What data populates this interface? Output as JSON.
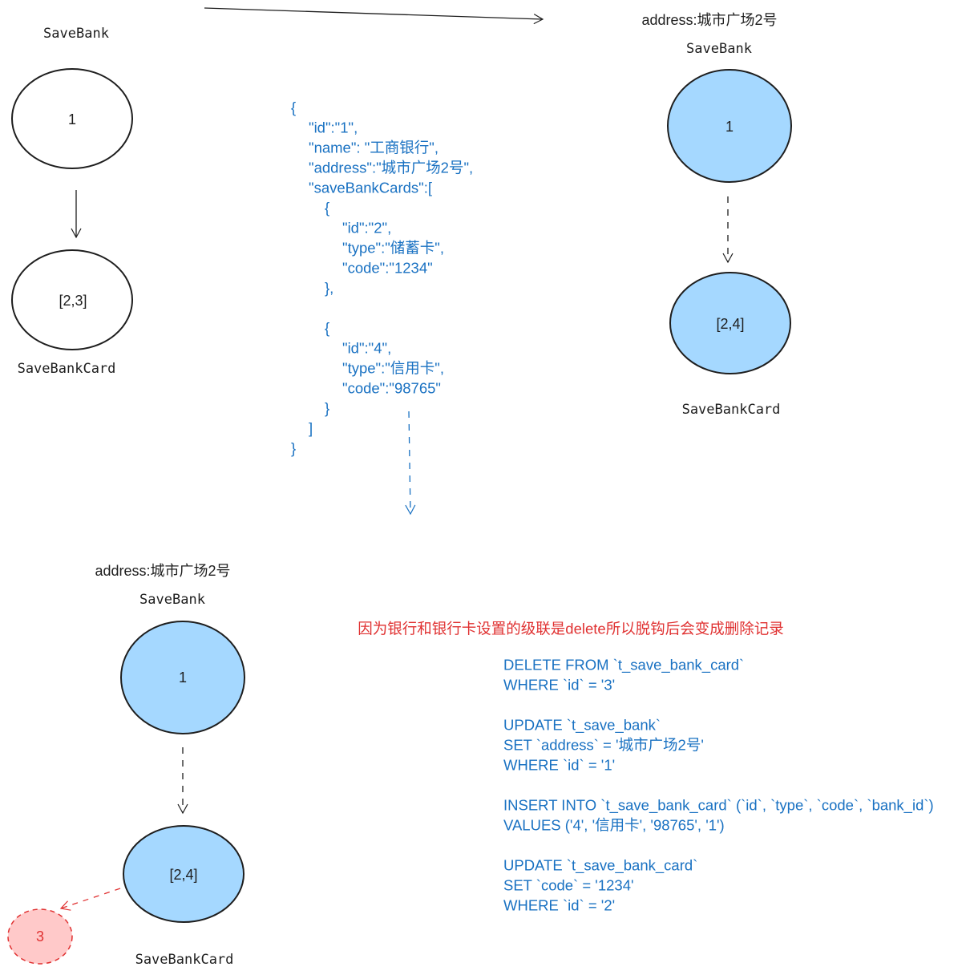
{
  "colors": {
    "stroke": "#1e1e1e",
    "blue_text": "#1971c2",
    "blue_fill": "#a5d8ff",
    "red": "#e03131",
    "red_fill": "#ffc9c9"
  },
  "before": {
    "bank_label": "SaveBank",
    "bank_node": "1",
    "card_node": "[2,3]",
    "card_label": "SaveBankCard"
  },
  "after_top": {
    "address": "address:城市广场2号",
    "bank_label": "SaveBank",
    "bank_node": "1",
    "card_node": "[2,4]",
    "card_label": "SaveBankCard"
  },
  "after_bottom": {
    "address": "address:城市广场2号",
    "bank_label": "SaveBank",
    "bank_node": "1",
    "card_node": "[2,4]",
    "removed_node": "3",
    "card_label": "SaveBankCard"
  },
  "json_payload": [
    {
      "indent": 0,
      "text": "{"
    },
    {
      "indent": 1,
      "text": "\"id\":\"1\","
    },
    {
      "indent": 1,
      "text": "\"name\": \"工商银行\","
    },
    {
      "indent": 1,
      "text": "\"address\":\"城市广场2号\","
    },
    {
      "indent": 1,
      "text": "\"saveBankCards\":["
    },
    {
      "indent": 2,
      "text": "{"
    },
    {
      "indent": 3,
      "text": "\"id\":\"2\","
    },
    {
      "indent": 3,
      "text": "\"type\":\"储蓄卡\","
    },
    {
      "indent": 3,
      "text": "\"code\":\"1234\""
    },
    {
      "indent": 2,
      "text": "},"
    },
    {
      "indent": 2,
      "text": ""
    },
    {
      "indent": 2,
      "text": "{"
    },
    {
      "indent": 3,
      "text": "\"id\":\"4\","
    },
    {
      "indent": 3,
      "text": "\"type\":\"信用卡\","
    },
    {
      "indent": 3,
      "text": "\"code\":\"98765\""
    },
    {
      "indent": 2,
      "text": "}"
    },
    {
      "indent": 1,
      "text": "]"
    },
    {
      "indent": 0,
      "text": "}"
    }
  ],
  "note": "因为银行和银行卡设置的级联是delete所以脱钩后会变成删除记录",
  "sql": [
    "DELETE FROM `t_save_bank_card`",
    "WHERE `id` = '3'",
    "",
    "UPDATE `t_save_bank`",
    "SET `address` = '城市广场2号'",
    "WHERE `id` = '1'",
    "",
    "INSERT INTO `t_save_bank_card` (`id`, `type`, `code`, `bank_id`)",
    "VALUES ('4', '信用卡', '98765', '1')",
    "",
    "UPDATE `t_save_bank_card`",
    "SET `code` = '1234'",
    "WHERE `id` = '2'"
  ]
}
